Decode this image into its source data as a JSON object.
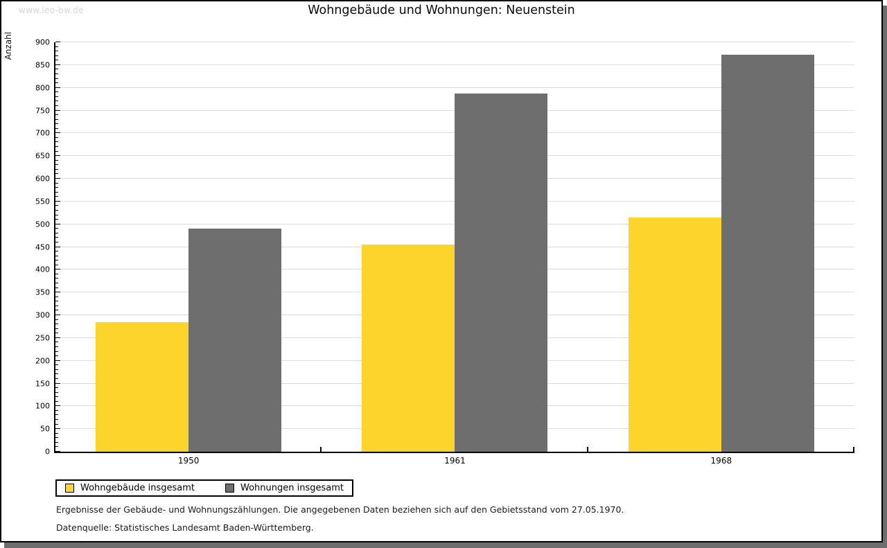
{
  "watermark": "www.leo-bw.de",
  "chart": {
    "title": "Wohngebäude und Wohnungen: Neuenstein",
    "ylabel": "Anzahl"
  },
  "chart_data": {
    "type": "bar",
    "title": "Wohngebäude und Wohnungen: Neuenstein",
    "xlabel": "",
    "ylabel": "Anzahl",
    "categories": [
      "1950",
      "1961",
      "1968"
    ],
    "series": [
      {
        "name": "Wohngebäude insgesamt",
        "color": "#fcd42c",
        "values": [
          285,
          455,
          515
        ]
      },
      {
        "name": "Wohnungen insgesamt",
        "color": "#6e6e6e",
        "values": [
          490,
          788,
          872
        ]
      }
    ],
    "ylim": [
      0,
      900
    ],
    "ytick_step": 50,
    "minor_tick_step": 10,
    "grid": true,
    "legend_position": "bottom-left"
  },
  "footer": {
    "note": "Ergebnisse der Gebäude- und Wohnungszählungen. Die angegebenen Daten beziehen sich auf den Gebietsstand vom 27.05.1970.",
    "source": "Datenquelle: Statistisches Landesamt Baden-Württemberg."
  },
  "colors": {
    "bar_yellow": "#fcd42c",
    "bar_gray": "#6e6e6e",
    "gridline": "#dcdcdc",
    "axis": "#000000",
    "watermark": "#d6d6d6",
    "shadow": "#6e6e6e"
  }
}
